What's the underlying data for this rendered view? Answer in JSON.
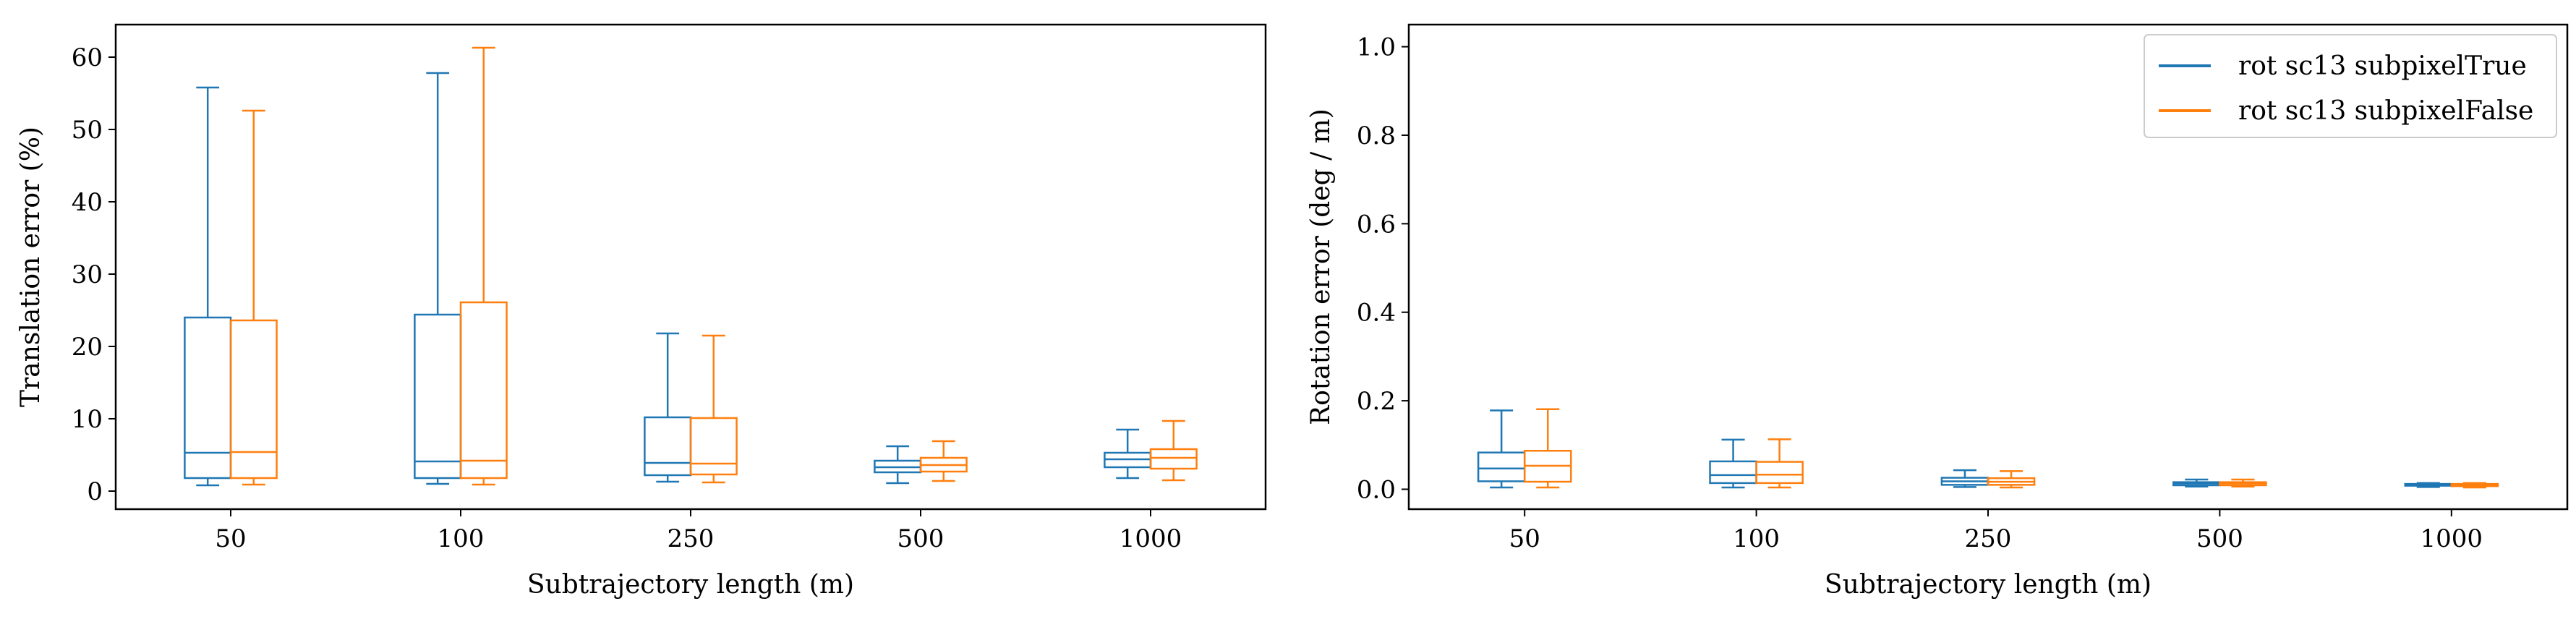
{
  "colors": {
    "series_1": "#1f77b4",
    "series_2": "#ff7f0e",
    "axes": "#000000",
    "legend_border": "#cccccc"
  },
  "legend": {
    "placement": "upper right of right panel",
    "entries": [
      "rot sc13 subpixelTrue",
      "rot sc13 subpixelFalse"
    ]
  },
  "chart_data": [
    {
      "type": "box",
      "xlabel": "Subtrajectory length (m)",
      "ylabel": "Translation error (%)",
      "categories": [
        "50",
        "100",
        "250",
        "500",
        "1000"
      ],
      "ylim": [
        -2.5,
        64.5
      ],
      "yticks": [
        0,
        10,
        20,
        30,
        40,
        50,
        60
      ],
      "ytick_labels": [
        "0",
        "10",
        "20",
        "30",
        "40",
        "50",
        "60"
      ],
      "grid": false,
      "series": [
        {
          "name": "rot sc13 subpixelTrue",
          "boxes": [
            {
              "whislo": 0.8,
              "q1": 1.8,
              "med": 5.3,
              "q3": 24.0,
              "whishi": 55.8
            },
            {
              "whislo": 1.0,
              "q1": 1.8,
              "med": 4.1,
              "q3": 24.4,
              "whishi": 57.8
            },
            {
              "whislo": 1.3,
              "q1": 2.2,
              "med": 3.9,
              "q3": 10.2,
              "whishi": 21.8
            },
            {
              "whislo": 1.1,
              "q1": 2.6,
              "med": 3.3,
              "q3": 4.2,
              "whishi": 6.2
            },
            {
              "whislo": 1.8,
              "q1": 3.3,
              "med": 4.4,
              "q3": 5.3,
              "whishi": 8.5
            }
          ]
        },
        {
          "name": "rot sc13 subpixelFalse",
          "boxes": [
            {
              "whislo": 0.9,
              "q1": 1.8,
              "med": 5.4,
              "q3": 23.6,
              "whishi": 52.6
            },
            {
              "whislo": 0.9,
              "q1": 1.8,
              "med": 4.2,
              "q3": 26.1,
              "whishi": 61.3
            },
            {
              "whislo": 1.2,
              "q1": 2.3,
              "med": 3.8,
              "q3": 10.1,
              "whishi": 21.5
            },
            {
              "whislo": 1.4,
              "q1": 2.7,
              "med": 3.6,
              "q3": 4.6,
              "whishi": 6.9
            },
            {
              "whislo": 1.5,
              "q1": 3.1,
              "med": 4.6,
              "q3": 5.8,
              "whishi": 9.7
            }
          ]
        }
      ]
    },
    {
      "type": "box",
      "xlabel": "Subtrajectory length (m)",
      "ylabel": "Rotation error (deg / m)",
      "categories": [
        "50",
        "100",
        "250",
        "500",
        "1000"
      ],
      "ylim": [
        -0.045,
        1.05
      ],
      "yticks": [
        0.0,
        0.2,
        0.4,
        0.6,
        0.8,
        1.0
      ],
      "ytick_labels": [
        "0.0",
        "0.2",
        "0.4",
        "0.6",
        "0.8",
        "1.0"
      ],
      "grid": false,
      "series": [
        {
          "name": "rot sc13 subpixelTrue",
          "boxes": [
            {
              "whislo": 0.004,
              "q1": 0.018,
              "med": 0.047,
              "q3": 0.083,
              "whishi": 0.178
            },
            {
              "whislo": 0.004,
              "q1": 0.014,
              "med": 0.032,
              "q3": 0.063,
              "whishi": 0.112
            },
            {
              "whislo": 0.005,
              "q1": 0.01,
              "med": 0.018,
              "q3": 0.026,
              "whishi": 0.043
            },
            {
              "whislo": 0.006,
              "q1": 0.009,
              "med": 0.013,
              "q3": 0.016,
              "whishi": 0.022
            },
            {
              "whislo": 0.005,
              "q1": 0.008,
              "med": 0.01,
              "q3": 0.012,
              "whishi": 0.014
            }
          ]
        },
        {
          "name": "rot sc13 subpixelFalse",
          "boxes": [
            {
              "whislo": 0.004,
              "q1": 0.017,
              "med": 0.053,
              "q3": 0.087,
              "whishi": 0.181
            },
            {
              "whislo": 0.004,
              "q1": 0.014,
              "med": 0.033,
              "q3": 0.062,
              "whishi": 0.113
            },
            {
              "whislo": 0.004,
              "q1": 0.01,
              "med": 0.017,
              "q3": 0.025,
              "whishi": 0.041
            },
            {
              "whislo": 0.006,
              "q1": 0.009,
              "med": 0.013,
              "q3": 0.016,
              "whishi": 0.022
            },
            {
              "whislo": 0.004,
              "q1": 0.007,
              "med": 0.01,
              "q3": 0.012,
              "whishi": 0.014
            }
          ]
        }
      ]
    }
  ]
}
